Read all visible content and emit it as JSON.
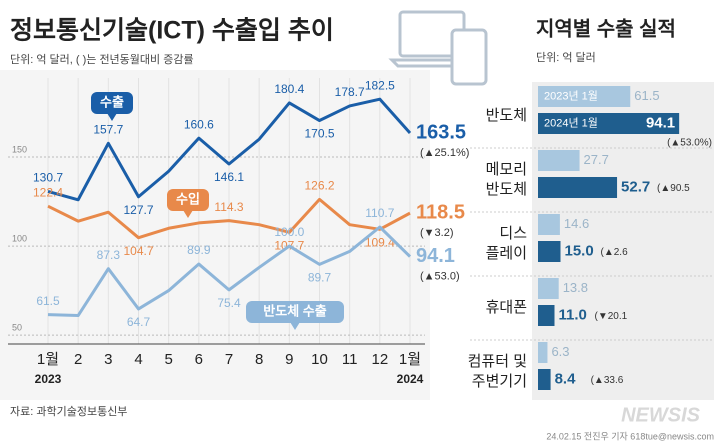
{
  "chart_data": [
    {
      "type": "line",
      "title": "정보통신기술(ICT) 수출입 추이",
      "subtitle": "단위: 억 달러, ( )는 전년동월대비 증감률",
      "categories": [
        "1월",
        "2",
        "3",
        "4",
        "5",
        "6",
        "7",
        "8",
        "9",
        "10",
        "11",
        "12",
        "1월"
      ],
      "year_labels": [
        "2023",
        null,
        null,
        null,
        null,
        null,
        null,
        null,
        null,
        null,
        null,
        null,
        "2024"
      ],
      "ylim": [
        45,
        200
      ],
      "yticks": [
        50,
        100,
        150
      ],
      "grid": true,
      "series": [
        {
          "name": "수출",
          "color": "#1a5ea8",
          "values": [
            130.7,
            126,
            157.7,
            127.7,
            142,
            160.6,
            146.1,
            160,
            180.4,
            170.5,
            178.7,
            182.5,
            163.5
          ],
          "value_labels": [
            "130.7",
            null,
            "157.7",
            "127.7",
            null,
            "160.6",
            "146.1",
            null,
            "180.4",
            "170.5",
            "178.7",
            "182.5",
            "163.5"
          ],
          "end_note": "(▲25.1%)"
        },
        {
          "name": "수입",
          "color": "#e8894a",
          "values": [
            122.4,
            114,
            119,
            104.7,
            110,
            113,
            114.3,
            112,
            107.7,
            126.2,
            112,
            109.4,
            118.5
          ],
          "value_labels": [
            "122.4",
            null,
            null,
            "104.7",
            null,
            null,
            "114.3",
            null,
            "107.7",
            "126.2",
            null,
            "109.4",
            "118.5"
          ],
          "end_note": "(▼3.2)"
        },
        {
          "name": "반도체 수출",
          "color": "#8db5d9",
          "values": [
            61.5,
            61,
            87.3,
            64.7,
            75,
            89.9,
            75.4,
            88,
            100,
            89.7,
            97,
            110.7,
            94.1
          ],
          "value_labels": [
            "61.5",
            null,
            "87.3",
            "64.7",
            null,
            "89.9",
            "75.4",
            null,
            "100.0",
            "89.7",
            null,
            "110.7",
            "94.1"
          ],
          "end_note": "(▲53.0)"
        }
      ],
      "source": "자료: 과학기술정보통신부",
      "credit": "24.02.15 전진우 기자 618tue@newsis.com",
      "logo": "NEWSIS"
    },
    {
      "type": "hbar",
      "title": "지역별 수출 실적",
      "subtitle": "단위: 억 달러",
      "categories": [
        [
          "반도체"
        ],
        [
          "메모리",
          "반도체"
        ],
        [
          "디스",
          "플레이"
        ],
        [
          "휴대폰"
        ],
        [
          "컴퓨터 및",
          "주변기기"
        ]
      ],
      "xlim": [
        0,
        100
      ],
      "series": [
        {
          "name": "2023년 1월",
          "color": "#a8c7df",
          "values": [
            61.5,
            27.7,
            14.6,
            13.8,
            6.3
          ]
        },
        {
          "name": "2024년 1월",
          "color": "#1f5e8e",
          "values": [
            94.1,
            52.7,
            15.0,
            11.0,
            8.4
          ],
          "value_labels": [
            "94.1",
            "52.7",
            "15.0",
            "11.0",
            "8.4"
          ],
          "notes": [
            "(▲53.0%)",
            "(▲90.5",
            "(▲2.6",
            "(▼20.1",
            "(▲33.6"
          ]
        }
      ]
    }
  ]
}
